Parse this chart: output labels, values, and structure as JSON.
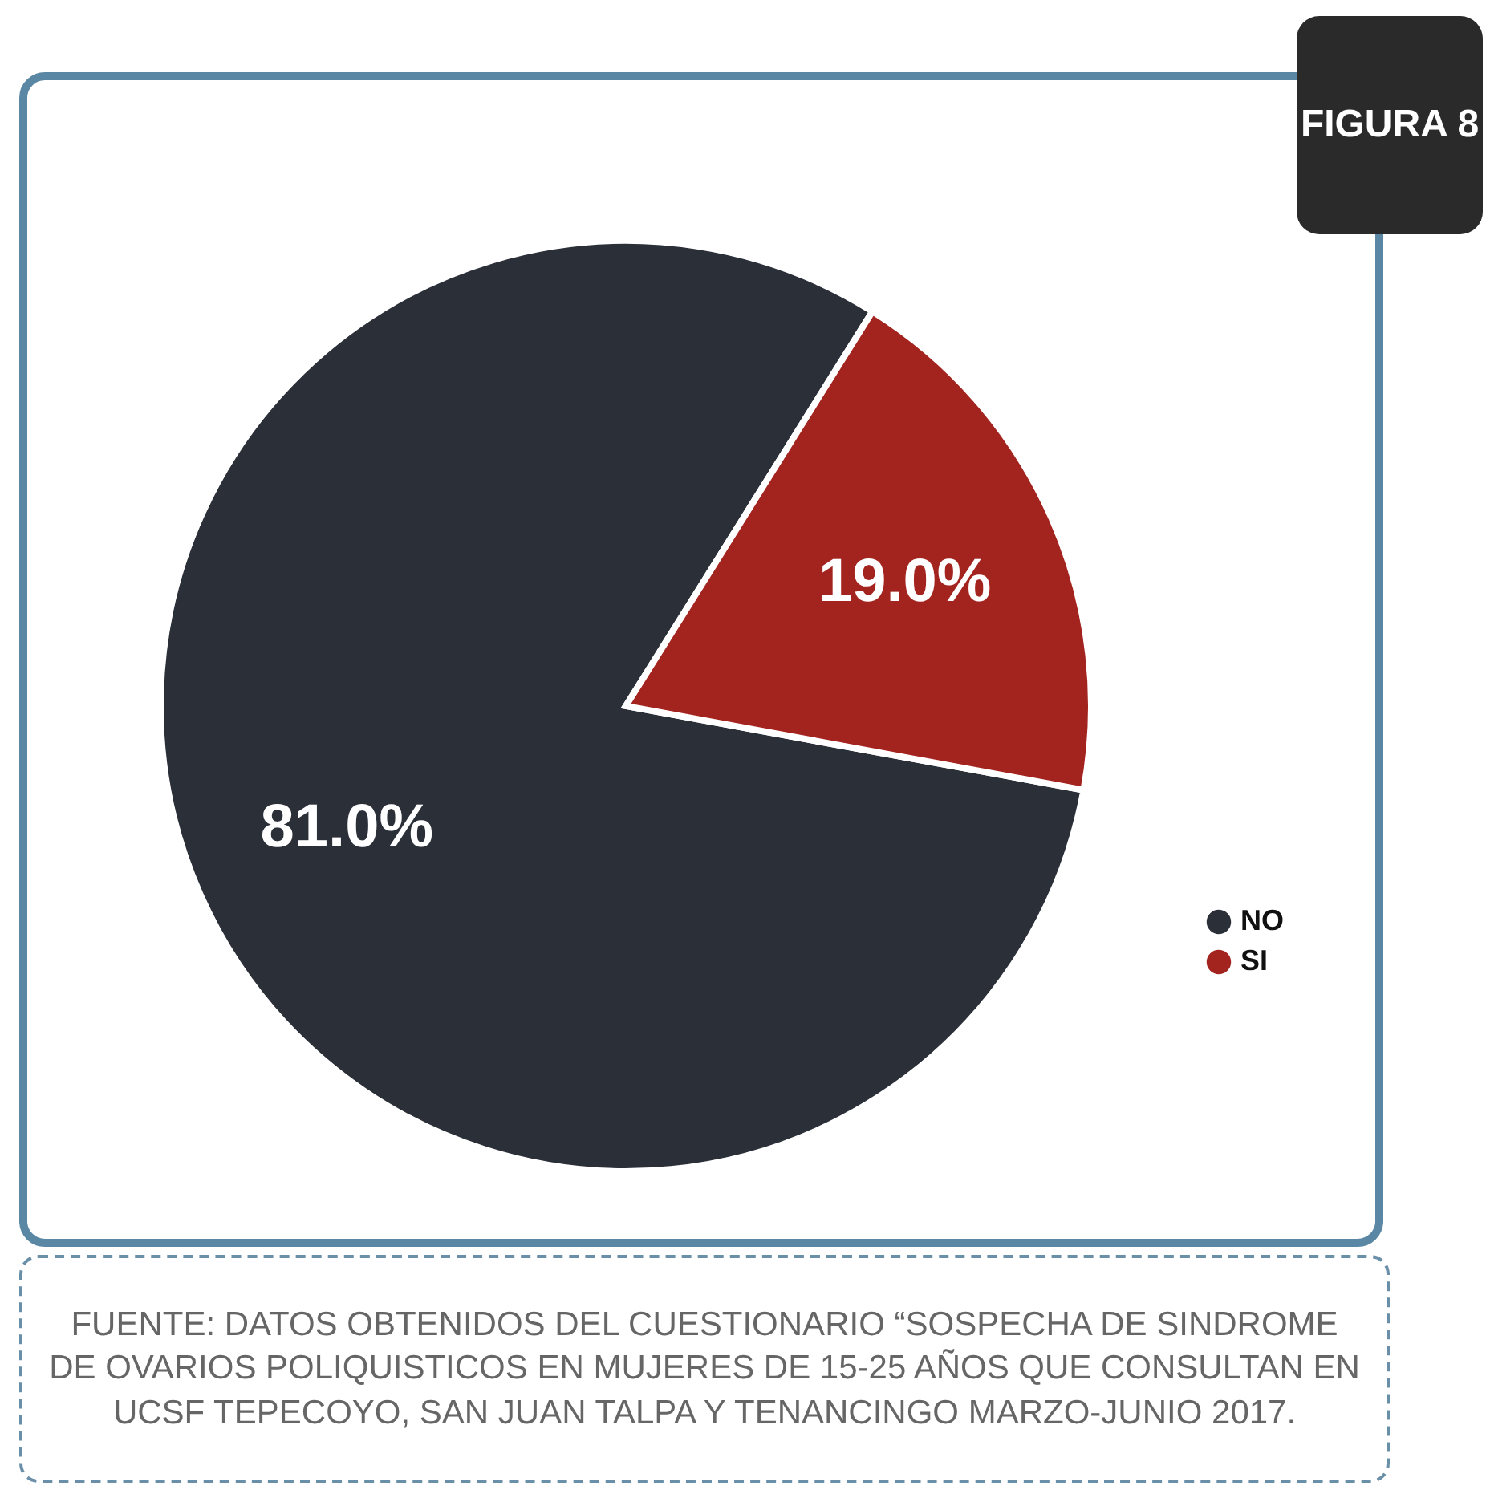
{
  "chart_data": {
    "type": "pie",
    "title": "FIGURA 8",
    "categories": [
      "NO",
      "SI"
    ],
    "values": [
      81.0,
      19.0
    ],
    "colors": [
      "#2b2f38",
      "#a3231f"
    ],
    "value_labels": [
      "81.0%",
      "19.0%"
    ],
    "legend": "right",
    "annotations": [
      "FUENTE: DATOS OBTENIDOS DEL CUESTIONARIO “SOSPECHA DE SINDROME DE OVARIOS POLIQUISTICOS EN MUJERES DE 15-25 AÑOS QUE CONSULTAN EN UCSF TEPECOYO, SAN JUAN TALPA Y TENANCINGO MARZO-JUNIO 2017."
    ]
  }
}
